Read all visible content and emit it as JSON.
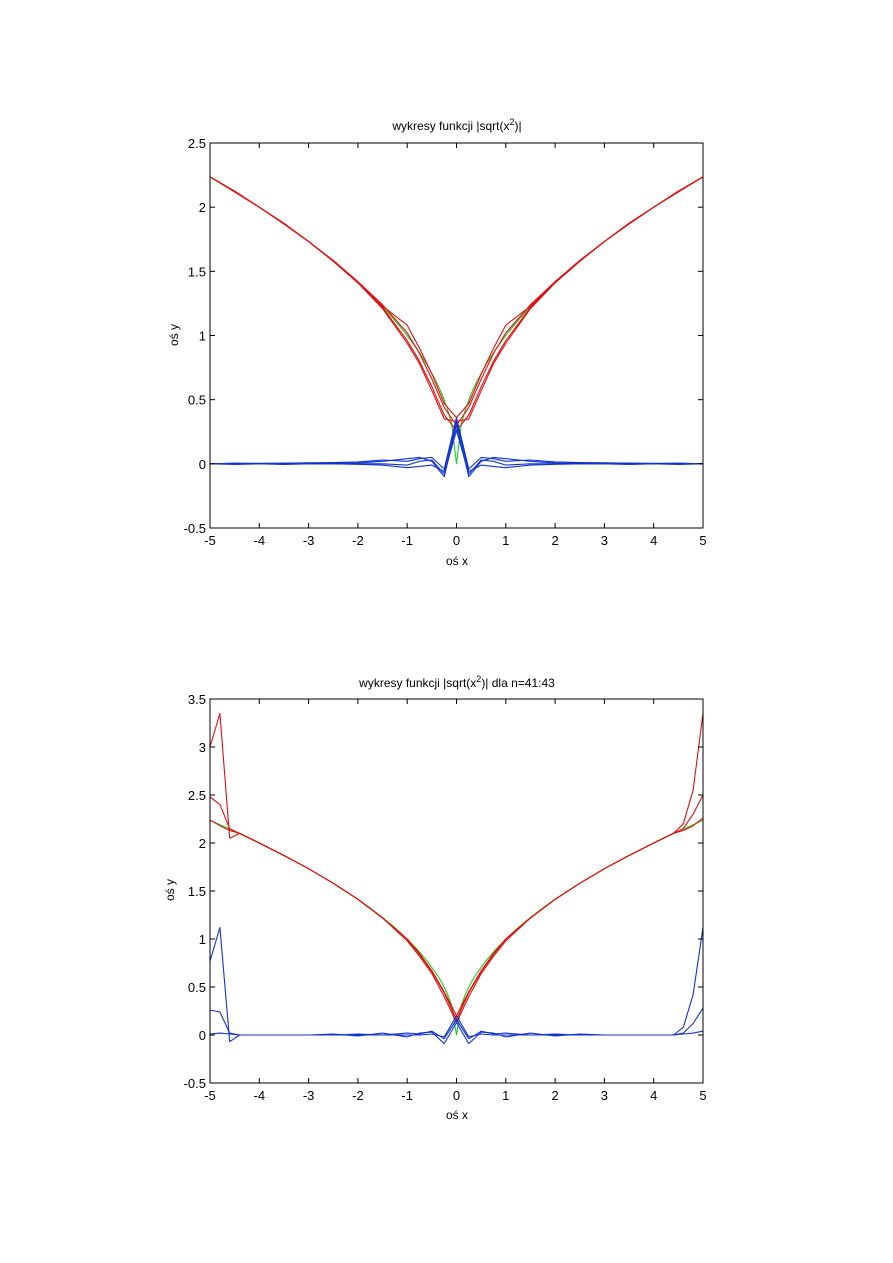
{
  "colors": {
    "exact": "#22cc22",
    "approx": "#dd1111",
    "error": "#1133cc",
    "axis": "#000000",
    "background": "#ffffff"
  },
  "chart_data": [
    {
      "type": "line",
      "title_main": "wykresy funkcji |sqrt(x",
      "title_sup": "2",
      "title_tail": ")|",
      "xlabel": "oś x",
      "ylabel": "oś y",
      "xlim": [
        -5,
        5
      ],
      "ylim": [
        -0.5,
        2.5
      ],
      "xticks": [
        -5,
        -4,
        -3,
        -2,
        -1,
        0,
        1,
        2,
        3,
        4,
        5
      ],
      "yticks": [
        -0.5,
        0,
        0.5,
        1,
        1.5,
        2,
        2.5
      ],
      "ytick_labels": [
        "-0.5",
        "0",
        "0.5",
        "1",
        "1.5",
        "2",
        "2.5"
      ],
      "grid": false,
      "series": [
        {
          "role": "exact",
          "color": "#22cc22",
          "x": [
            -5,
            -4.5,
            -4,
            -3.5,
            -3,
            -2.5,
            -2,
            -1.75,
            -1.5,
            -1.25,
            -1,
            -0.8,
            -0.6,
            -0.4,
            -0.3,
            -0.2,
            -0.1,
            0,
            0.1,
            0.2,
            0.3,
            0.4,
            0.6,
            0.8,
            1,
            1.25,
            1.5,
            1.75,
            2,
            2.5,
            3,
            3.5,
            4,
            4.5,
            5
          ],
          "y": [
            2.236,
            2.121,
            2.0,
            1.871,
            1.732,
            1.581,
            1.414,
            1.323,
            1.225,
            1.118,
            1.0,
            0.894,
            0.775,
            0.632,
            0.548,
            0.447,
            0.316,
            0.0,
            0.316,
            0.447,
            0.548,
            0.632,
            0.775,
            0.894,
            1.0,
            1.118,
            1.225,
            1.323,
            1.414,
            1.581,
            1.732,
            1.871,
            2.0,
            2.121,
            2.236
          ]
        },
        {
          "role": "approx",
          "color": "#dd1111",
          "x": [
            -5,
            -4.5,
            -4,
            -3.5,
            -3,
            -2.5,
            -2,
            -1.5,
            -1,
            -0.75,
            -0.5,
            -0.25,
            0,
            0.25,
            0.5,
            0.75,
            1,
            1.5,
            2,
            2.5,
            3,
            3.5,
            4,
            4.5,
            5
          ],
          "y": [
            2.236,
            2.12,
            2.0,
            1.87,
            1.732,
            1.58,
            1.414,
            1.22,
            0.96,
            0.8,
            0.6,
            0.38,
            0.26,
            0.38,
            0.6,
            0.8,
            0.96,
            1.22,
            1.414,
            1.58,
            1.732,
            1.87,
            2.0,
            2.12,
            2.236
          ]
        },
        {
          "role": "approx",
          "color": "#dd1111",
          "x": [
            -5,
            -4.5,
            -4,
            -3.5,
            -3,
            -2.5,
            -2,
            -1.5,
            -1,
            -0.75,
            -0.5,
            -0.25,
            0,
            0.25,
            0.5,
            0.75,
            1,
            1.5,
            2,
            2.5,
            3,
            3.5,
            4,
            4.5,
            5
          ],
          "y": [
            2.236,
            2.125,
            2.0,
            1.875,
            1.732,
            1.585,
            1.42,
            1.24,
            1.02,
            0.86,
            0.66,
            0.44,
            0.3,
            0.44,
            0.66,
            0.86,
            1.02,
            1.24,
            1.42,
            1.585,
            1.732,
            1.875,
            2.0,
            2.125,
            2.236
          ]
        },
        {
          "role": "approx",
          "color": "#dd1111",
          "x": [
            -5,
            -4.5,
            -4,
            -3.5,
            -3,
            -2.5,
            -2,
            -1.5,
            -1,
            -0.75,
            -0.5,
            -0.25,
            0,
            0.25,
            0.5,
            0.75,
            1,
            1.5,
            2,
            2.5,
            3,
            3.5,
            4,
            4.5,
            5
          ],
          "y": [
            2.236,
            2.118,
            2.0,
            1.868,
            1.732,
            1.578,
            1.41,
            1.21,
            0.94,
            0.78,
            0.57,
            0.35,
            0.33,
            0.35,
            0.57,
            0.78,
            0.94,
            1.21,
            1.41,
            1.578,
            1.732,
            1.868,
            2.0,
            2.118,
            2.236
          ]
        },
        {
          "role": "approx",
          "color": "#dd1111",
          "x": [
            -5,
            -4.5,
            -4,
            -3.5,
            -3,
            -2.5,
            -2,
            -1.5,
            -1,
            -0.75,
            -0.5,
            -0.25,
            0,
            0.25,
            0.5,
            0.75,
            1,
            1.5,
            2,
            2.5,
            3,
            3.5,
            4,
            4.5,
            5
          ],
          "y": [
            2.236,
            2.123,
            2.0,
            1.873,
            1.732,
            1.583,
            1.417,
            1.23,
            1.08,
            0.9,
            0.7,
            0.47,
            0.36,
            0.47,
            0.7,
            0.9,
            1.08,
            1.23,
            1.417,
            1.583,
            1.732,
            1.873,
            2.0,
            2.123,
            2.236
          ]
        },
        {
          "role": "error",
          "color": "#1133cc",
          "x": [
            -5,
            -4.5,
            -4,
            -3.5,
            -3,
            -2.5,
            -2,
            -1.5,
            -1,
            -0.75,
            -0.5,
            -0.25,
            0,
            0.25,
            0.5,
            0.75,
            1,
            1.5,
            2,
            2.5,
            3,
            3.5,
            4,
            4.5,
            5
          ],
          "y": [
            0,
            0,
            0,
            0,
            0,
            0,
            0,
            0,
            -0.01,
            0.02,
            0.03,
            -0.08,
            0.26,
            -0.08,
            0.03,
            0.02,
            -0.01,
            0,
            0,
            0,
            0,
            0,
            0,
            0,
            0
          ]
        },
        {
          "role": "error",
          "color": "#1133cc",
          "x": [
            -5,
            -4.5,
            -4,
            -3.5,
            -3,
            -2.5,
            -2,
            -1.5,
            -1,
            -0.75,
            -0.5,
            -0.25,
            0,
            0.25,
            0.5,
            0.75,
            1,
            1.5,
            2,
            2.5,
            3,
            3.5,
            4,
            4.5,
            5
          ],
          "y": [
            0,
            0.005,
            0,
            0.005,
            0,
            0.005,
            0.006,
            0.02,
            0.04,
            0.05,
            0.02,
            -0.1,
            0.3,
            -0.1,
            0.02,
            0.05,
            0.04,
            0.02,
            0.006,
            0.005,
            0,
            0.005,
            0,
            0.005,
            0
          ]
        },
        {
          "role": "error",
          "color": "#1133cc",
          "x": [
            -5,
            -4.5,
            -4,
            -3.5,
            -3,
            -2.5,
            -2,
            -1.5,
            -1,
            -0.75,
            -0.5,
            -0.25,
            0,
            0.25,
            0.5,
            0.75,
            1,
            1.5,
            2,
            2.5,
            3,
            3.5,
            4,
            4.5,
            5
          ],
          "y": [
            0,
            -0.005,
            0,
            -0.005,
            0,
            0,
            -0.004,
            -0.01,
            -0.03,
            -0.02,
            -0.01,
            -0.06,
            0.33,
            -0.06,
            -0.01,
            -0.02,
            -0.03,
            -0.01,
            -0.004,
            0,
            0,
            -0.005,
            0,
            -0.005,
            0
          ]
        },
        {
          "role": "error",
          "color": "#1133cc",
          "x": [
            -5,
            -4.5,
            -4,
            -3.5,
            -3,
            -2.5,
            -2,
            -1.5,
            -1,
            -0.75,
            -0.5,
            -0.25,
            0,
            0.25,
            0.5,
            0.75,
            1,
            1.5,
            2,
            2.5,
            3,
            3.5,
            4,
            4.5,
            5
          ],
          "y": [
            0,
            0.004,
            0.004,
            0.005,
            0.008,
            0.01,
            0.015,
            0.03,
            0.02,
            0.04,
            0.05,
            -0.04,
            0.36,
            -0.04,
            0.05,
            0.04,
            0.02,
            0.03,
            0.015,
            0.01,
            0.008,
            0.005,
            0.004,
            0.004,
            0
          ]
        }
      ]
    },
    {
      "type": "line",
      "title_main": "wykresy funkcji |sqrt(x",
      "title_sup": "2",
      "title_tail": ")| dla n=41:43",
      "xlabel": "oś x",
      "ylabel": "oś y",
      "xlim": [
        -5,
        5
      ],
      "ylim": [
        -0.5,
        3.5
      ],
      "xticks": [
        -5,
        -4,
        -3,
        -2,
        -1,
        0,
        1,
        2,
        3,
        4,
        5
      ],
      "yticks": [
        -0.5,
        0,
        0.5,
        1,
        1.5,
        2,
        2.5,
        3,
        3.5
      ],
      "ytick_labels": [
        "-0.5",
        "0",
        "0.5",
        "1",
        "1.5",
        "2",
        "2.5",
        "3",
        "3.5"
      ],
      "grid": false,
      "series": [
        {
          "role": "exact",
          "color": "#22cc22",
          "x": [
            -5,
            -4.5,
            -4,
            -3.5,
            -3,
            -2.5,
            -2,
            -1.75,
            -1.5,
            -1.25,
            -1,
            -0.8,
            -0.6,
            -0.4,
            -0.3,
            -0.2,
            -0.1,
            0,
            0.1,
            0.2,
            0.3,
            0.4,
            0.6,
            0.8,
            1,
            1.25,
            1.5,
            1.75,
            2,
            2.5,
            3,
            3.5,
            4,
            4.5,
            5
          ],
          "y": [
            2.236,
            2.121,
            2.0,
            1.871,
            1.732,
            1.581,
            1.414,
            1.323,
            1.225,
            1.118,
            1.0,
            0.894,
            0.775,
            0.632,
            0.548,
            0.447,
            0.316,
            0.0,
            0.316,
            0.447,
            0.548,
            0.632,
            0.775,
            0.894,
            1.0,
            1.118,
            1.225,
            1.323,
            1.414,
            1.581,
            1.732,
            1.871,
            2.0,
            2.121,
            2.236
          ]
        },
        {
          "role": "approx",
          "color": "#dd1111",
          "x": [
            -5,
            -4.8,
            -4.6,
            -4.4,
            -4,
            -3.5,
            -3,
            -2.5,
            -2,
            -1.5,
            -1,
            -0.75,
            -0.5,
            -0.25,
            0,
            0.25,
            0.5,
            0.75,
            1,
            1.5,
            2,
            2.5,
            3,
            3.5,
            4,
            4.4,
            4.6,
            4.8,
            5
          ],
          "y": [
            3.0,
            3.35,
            2.05,
            2.1,
            2.0,
            1.87,
            1.732,
            1.58,
            1.414,
            1.22,
            0.98,
            0.82,
            0.64,
            0.4,
            0.13,
            0.4,
            0.64,
            0.82,
            0.98,
            1.22,
            1.414,
            1.58,
            1.732,
            1.87,
            2.0,
            2.1,
            2.2,
            2.55,
            3.35
          ]
        },
        {
          "role": "approx",
          "color": "#dd1111",
          "x": [
            -5,
            -4.8,
            -4.6,
            -4.4,
            -4,
            -3.5,
            -3,
            -2.5,
            -2,
            -1.5,
            -1,
            -0.75,
            -0.5,
            -0.25,
            0,
            0.25,
            0.5,
            0.75,
            1,
            1.5,
            2,
            2.5,
            3,
            3.5,
            4,
            4.4,
            4.6,
            4.8,
            5
          ],
          "y": [
            2.48,
            2.4,
            2.15,
            2.1,
            2.0,
            1.87,
            1.732,
            1.58,
            1.414,
            1.22,
            1.0,
            0.84,
            0.66,
            0.44,
            0.16,
            0.44,
            0.66,
            0.84,
            1.0,
            1.22,
            1.414,
            1.58,
            1.732,
            1.87,
            2.0,
            2.1,
            2.15,
            2.3,
            2.5
          ]
        },
        {
          "role": "approx",
          "color": "#dd1111",
          "x": [
            -5,
            -4.8,
            -4.6,
            -4.4,
            -4,
            -3.5,
            -3,
            -2.5,
            -2,
            -1.5,
            -1,
            -0.75,
            -0.5,
            -0.25,
            0,
            0.25,
            0.5,
            0.75,
            1,
            1.5,
            2,
            2.5,
            3,
            3.5,
            4,
            4.4,
            4.6,
            4.8,
            5
          ],
          "y": [
            2.24,
            2.18,
            2.13,
            2.1,
            2.0,
            1.87,
            1.732,
            1.58,
            1.414,
            1.22,
            1.0,
            0.85,
            0.67,
            0.45,
            0.2,
            0.45,
            0.67,
            0.85,
            1.0,
            1.22,
            1.414,
            1.58,
            1.732,
            1.87,
            2.0,
            2.1,
            2.13,
            2.18,
            2.26
          ]
        },
        {
          "role": "error",
          "color": "#1133cc",
          "x": [
            -5,
            -4.8,
            -4.6,
            -4.4,
            -4,
            -3.5,
            -3,
            -2.5,
            -2,
            -1.5,
            -1,
            -0.75,
            -0.5,
            -0.25,
            0,
            0.25,
            0.5,
            0.75,
            1,
            1.5,
            2,
            2.5,
            3,
            3.5,
            4,
            4.4,
            4.6,
            4.8,
            5
          ],
          "y": [
            0.77,
            1.12,
            -0.07,
            0.0,
            0,
            0,
            0,
            0.01,
            -0.01,
            0.02,
            -0.02,
            0.02,
            0.03,
            -0.09,
            0.13,
            -0.09,
            0.03,
            0.02,
            -0.02,
            0.02,
            -0.01,
            0.01,
            0,
            0,
            0,
            0.0,
            0.08,
            0.42,
            1.12
          ]
        },
        {
          "role": "error",
          "color": "#1133cc",
          "x": [
            -5,
            -4.8,
            -4.6,
            -4.4,
            -4,
            -3.5,
            -3,
            -2.5,
            -2,
            -1.5,
            -1,
            -0.75,
            -0.5,
            -0.25,
            0,
            0.25,
            0.5,
            0.75,
            1,
            1.5,
            2,
            2.5,
            3,
            3.5,
            4,
            4.4,
            4.6,
            4.8,
            5
          ],
          "y": [
            0.26,
            0.24,
            0.02,
            0.0,
            0,
            0,
            0,
            0,
            0.01,
            0,
            0.02,
            0.01,
            0.04,
            -0.04,
            0.16,
            -0.04,
            0.04,
            0.01,
            0.02,
            0,
            0.01,
            0,
            0,
            0,
            0,
            0.0,
            0.02,
            0.12,
            0.28
          ]
        },
        {
          "role": "error",
          "color": "#1133cc",
          "x": [
            -5,
            -4.8,
            -4.6,
            -4.4,
            -4,
            -3.5,
            -3,
            -2.5,
            -2,
            -1.5,
            -1,
            -0.75,
            -0.5,
            -0.25,
            0,
            0.25,
            0.5,
            0.75,
            1,
            1.5,
            2,
            2.5,
            3,
            3.5,
            4,
            4.4,
            4.6,
            4.8,
            5
          ],
          "y": [
            0.01,
            0.02,
            0.01,
            0.0,
            0,
            0,
            0,
            0,
            0,
            0,
            0,
            0,
            0.01,
            -0.02,
            0.2,
            -0.02,
            0.01,
            0,
            0,
            0,
            0,
            0,
            0,
            0,
            0,
            0.0,
            0.01,
            0.02,
            0.04
          ]
        }
      ]
    }
  ]
}
